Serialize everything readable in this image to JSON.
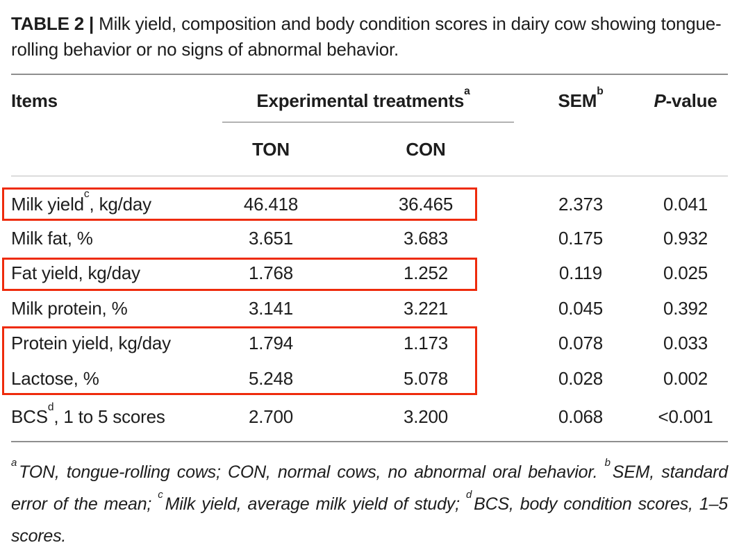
{
  "caption": {
    "label": "TABLE 2 |",
    "text": " Milk yield, composition and body condition scores in dairy cow showing tongue- rolling behavior or no signs of abnormal behavior."
  },
  "header": {
    "items": "Items",
    "treatments": {
      "text": "Experimental treatments",
      "sup": "a"
    },
    "sem": {
      "text": "SEM",
      "sup": "b"
    },
    "pvalue": {
      "italic": "P",
      "rest": "-value"
    },
    "ton": "TON",
    "con": "CON"
  },
  "rows": [
    {
      "label": {
        "pre": "Milk yield",
        "sup": "c",
        "post": ", kg/day"
      },
      "ton": "46.418",
      "con": "36.465",
      "sem": "2.373",
      "p": "0.041",
      "highlighted": true
    },
    {
      "label": {
        "pre": "Milk fat, %",
        "sup": "",
        "post": ""
      },
      "ton": "3.651",
      "con": "3.683",
      "sem": "0.175",
      "p": "0.932",
      "highlighted": false
    },
    {
      "label": {
        "pre": "Fat yield, kg/day",
        "sup": "",
        "post": ""
      },
      "ton": "1.768",
      "con": "1.252",
      "sem": "0.119",
      "p": "0.025",
      "highlighted": true
    },
    {
      "label": {
        "pre": "Milk protein, %",
        "sup": "",
        "post": ""
      },
      "ton": "3.141",
      "con": "3.221",
      "sem": "0.045",
      "p": "0.392",
      "highlighted": false
    },
    {
      "label": {
        "pre": "Protein yield, kg/day",
        "sup": "",
        "post": ""
      },
      "ton": "1.794",
      "con": "1.173",
      "sem": "0.078",
      "p": "0.033",
      "highlighted": true
    },
    {
      "label": {
        "pre": "Lactose, %",
        "sup": "",
        "post": ""
      },
      "ton": "5.248",
      "con": "5.078",
      "sem": "0.028",
      "p": "0.002",
      "highlighted": true
    },
    {
      "label": {
        "pre": "BCS",
        "sup": "d",
        "post": ", 1 to 5 scores"
      },
      "ton": "2.700",
      "con": "3.200",
      "sem": "0.068",
      "p": "<0.001",
      "highlighted": false
    }
  ],
  "annotations": {
    "color": "#ee2b0c",
    "boxes": [
      {
        "covers": "Milk yield row"
      },
      {
        "covers": "Fat yield row"
      },
      {
        "covers": "Protein yield and Lactose rows"
      }
    ]
  },
  "footnotes": {
    "segments": [
      {
        "sup": "a",
        "text": "TON, tongue-rolling cows; CON, normal cows, no abnormal oral behavior. "
      },
      {
        "sup": "b",
        "text": "SEM, standard error of the mean; "
      },
      {
        "sup": "c",
        "text": "Milk yield, average milk yield of study; "
      },
      {
        "sup": "d",
        "text": "BCS, body condition scores, 1–5 scores."
      }
    ]
  }
}
